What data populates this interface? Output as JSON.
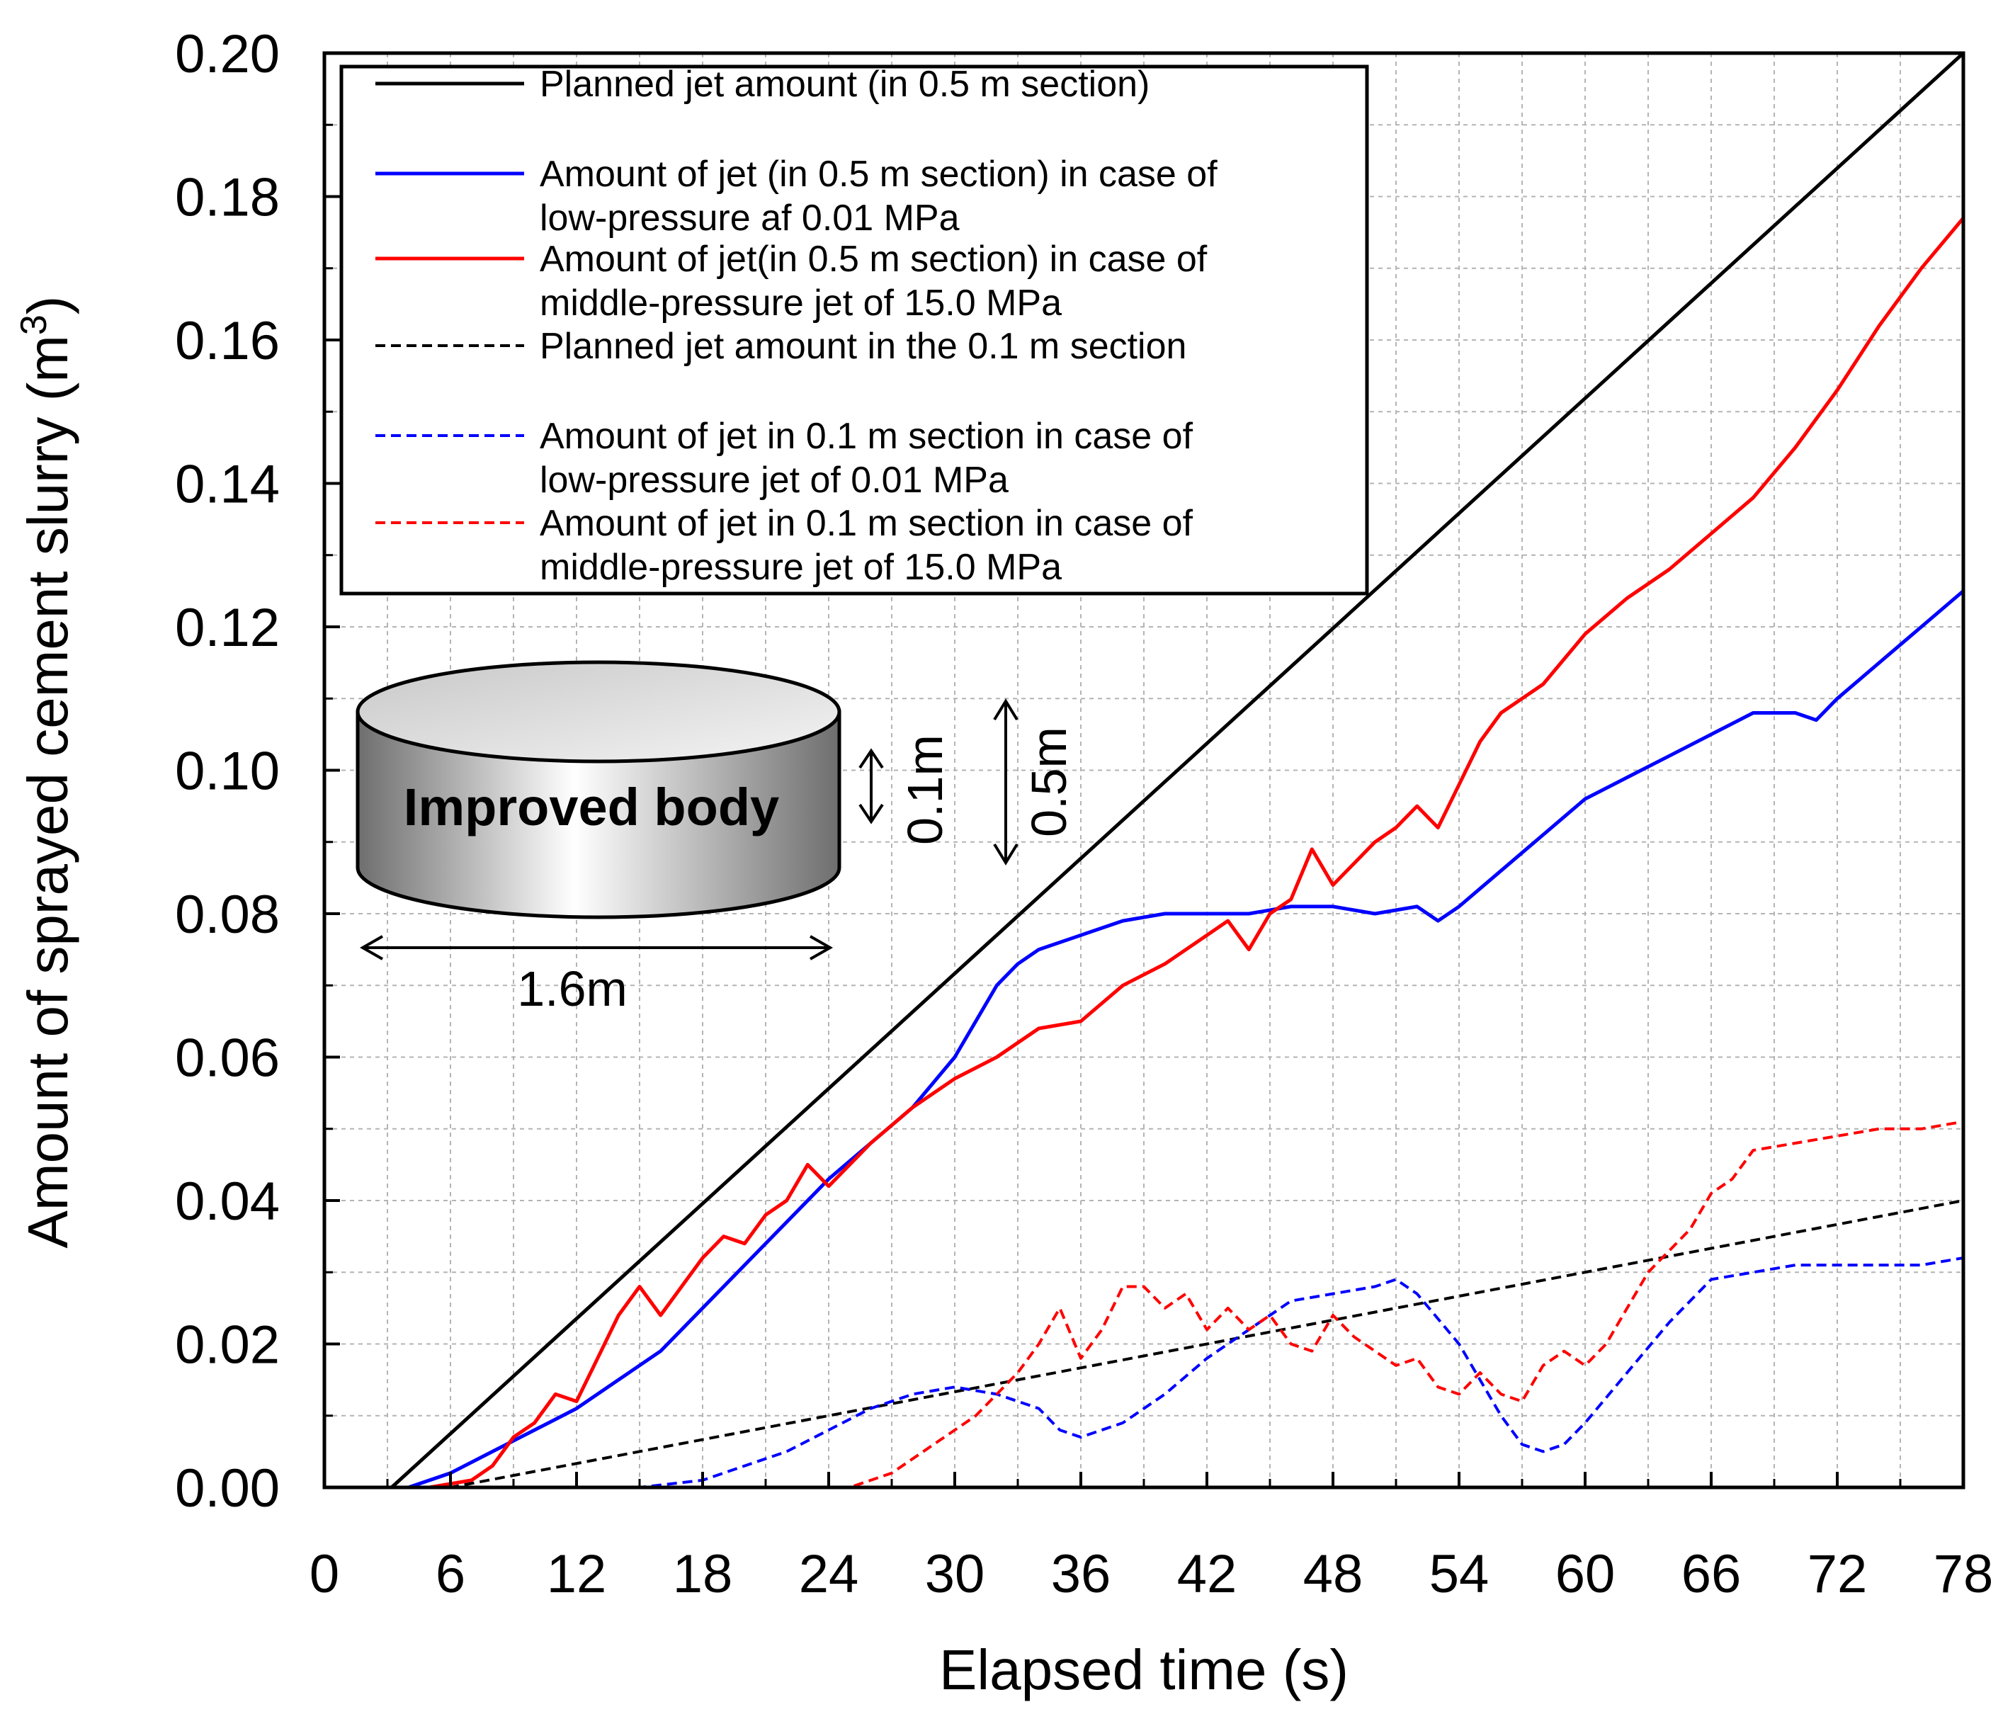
{
  "chart_data": {
    "type": "line",
    "xlabel": "Elapsed time (s)",
    "ylabel_main": "Amount of sprayed cement slurry (m",
    "ylabel_sup": "3",
    "ylabel_end": ")",
    "xlim": [
      0,
      78
    ],
    "ylim": [
      0,
      0.2
    ],
    "x_ticks": [
      "0",
      "6",
      "12",
      "18",
      "24",
      "30",
      "36",
      "42",
      "48",
      "54",
      "60",
      "66",
      "72",
      "78"
    ],
    "y_ticks": [
      "0.00",
      "0.02",
      "0.04",
      "0.06",
      "0.08",
      "0.10",
      "0.12",
      "0.14",
      "0.16",
      "0.18",
      "0.20"
    ],
    "grid": true,
    "legend_position": "top-left",
    "series": [
      {
        "name": "Planned jet amount (in 0.5 m section)",
        "legend_lines": [
          "Planned jet amount (in 0.5 m section)"
        ],
        "color": "#000000",
        "dash": "solid",
        "x": [
          0,
          3.2,
          78
        ],
        "y": [
          0,
          0,
          0.2
        ]
      },
      {
        "name": "Amount of jet (in 0.5 m section) in case of low-pressure af 0.01 MPa",
        "legend_lines": [
          "Amount of jet (in 0.5 m section) in case  of",
          "low-pressure af 0.01 MPa"
        ],
        "color": "#0000ff",
        "dash": "solid",
        "x": [
          0,
          4,
          6,
          8,
          10,
          12,
          14,
          16,
          18,
          20,
          22,
          24,
          26,
          28,
          30,
          31,
          32,
          33,
          34,
          36,
          38,
          40,
          42,
          44,
          46,
          48,
          50,
          52,
          53,
          54,
          56,
          58,
          60,
          62,
          64,
          66,
          68,
          70,
          71,
          72,
          74,
          76,
          78
        ],
        "y": [
          0,
          0,
          0.002,
          0.005,
          0.008,
          0.011,
          0.015,
          0.019,
          0.025,
          0.031,
          0.037,
          0.043,
          0.048,
          0.053,
          0.06,
          0.065,
          0.07,
          0.073,
          0.075,
          0.077,
          0.079,
          0.08,
          0.08,
          0.08,
          0.081,
          0.081,
          0.08,
          0.081,
          0.079,
          0.081,
          0.086,
          0.091,
          0.096,
          0.099,
          0.102,
          0.105,
          0.108,
          0.108,
          0.107,
          0.11,
          0.115,
          0.12,
          0.125
        ]
      },
      {
        "name": "Amount of jet(in 0.5 m section) in case of middle-pressure jet of 15.0 MPa",
        "legend_lines": [
          "Amount of jet(in 0.5 m section) in case of",
          "middle-pressure jet of 15.0 MPa"
        ],
        "color": "#ff0000",
        "dash": "solid",
        "x": [
          0,
          5,
          7,
          8,
          9,
          10,
          11,
          12,
          13,
          14,
          15,
          16,
          17,
          18,
          19,
          20,
          21,
          22,
          23,
          24,
          26,
          28,
          30,
          32,
          34,
          36,
          38,
          40,
          42,
          43,
          44,
          45,
          46,
          47,
          48,
          49,
          50,
          51,
          52,
          53,
          54,
          55,
          56,
          58,
          60,
          62,
          64,
          66,
          68,
          70,
          72,
          74,
          76,
          78
        ],
        "y": [
          0,
          0,
          0.001,
          0.003,
          0.007,
          0.009,
          0.013,
          0.012,
          0.018,
          0.024,
          0.028,
          0.024,
          0.028,
          0.032,
          0.035,
          0.034,
          0.038,
          0.04,
          0.045,
          0.042,
          0.048,
          0.053,
          0.057,
          0.06,
          0.064,
          0.065,
          0.07,
          0.073,
          0.077,
          0.079,
          0.075,
          0.08,
          0.082,
          0.089,
          0.084,
          0.087,
          0.09,
          0.092,
          0.095,
          0.092,
          0.098,
          0.104,
          0.108,
          0.112,
          0.119,
          0.124,
          0.128,
          0.133,
          0.138,
          0.145,
          0.153,
          0.162,
          0.17,
          0.177
        ]
      },
      {
        "name": "Planned jet amount in the 0.1 m section",
        "legend_lines": [
          "Planned jet amount in the 0.1 m section"
        ],
        "color": "#000000",
        "dash": "dashed",
        "x": [
          0,
          6,
          78
        ],
        "y": [
          0,
          0,
          0.04
        ]
      },
      {
        "name": "Amount of jet in 0.1 m section in case of low-pressure jet of 0.01 MPa",
        "legend_lines": [
          "Amount of jet in 0.1 m section in case of",
          "low-pressure jet of 0.01 MPa"
        ],
        "color": "#0000ff",
        "dash": "dashed",
        "x": [
          0,
          15,
          18,
          20,
          22,
          24,
          26,
          28,
          30,
          32,
          34,
          35,
          36,
          38,
          40,
          42,
          44,
          46,
          48,
          50,
          51,
          52,
          54,
          56,
          57,
          58,
          59,
          60,
          62,
          64,
          66,
          68,
          70,
          72,
          74,
          76,
          78
        ],
        "y": [
          0,
          0,
          0.001,
          0.003,
          0.005,
          0.008,
          0.011,
          0.013,
          0.014,
          0.013,
          0.011,
          0.008,
          0.007,
          0.009,
          0.013,
          0.018,
          0.022,
          0.026,
          0.027,
          0.028,
          0.029,
          0.027,
          0.02,
          0.01,
          0.006,
          0.005,
          0.006,
          0.009,
          0.016,
          0.023,
          0.029,
          0.03,
          0.031,
          0.031,
          0.031,
          0.031,
          0.032
        ]
      },
      {
        "name": "Amount of jet in 0.1 m section in case of middle-pressure jet of 15.0 MPa",
        "legend_lines": [
          "Amount of jet in 0.1 m section in case of",
          "middle-pressure jet of 15.0 MPa"
        ],
        "color": "#ff0000",
        "dash": "dashed",
        "x": [
          0,
          25,
          27,
          29,
          31,
          33,
          34,
          35,
          36,
          37,
          38,
          39,
          40,
          41,
          42,
          43,
          44,
          45,
          46,
          47,
          48,
          49,
          50,
          51,
          52,
          53,
          54,
          55,
          56,
          57,
          58,
          59,
          60,
          61,
          62,
          63,
          64,
          65,
          66,
          67,
          68,
          70,
          72,
          74,
          76,
          78
        ],
        "y": [
          0,
          0,
          0.002,
          0.006,
          0.01,
          0.016,
          0.02,
          0.025,
          0.018,
          0.022,
          0.028,
          0.028,
          0.025,
          0.027,
          0.022,
          0.025,
          0.022,
          0.024,
          0.02,
          0.019,
          0.024,
          0.021,
          0.019,
          0.017,
          0.018,
          0.014,
          0.013,
          0.016,
          0.013,
          0.012,
          0.017,
          0.019,
          0.017,
          0.02,
          0.025,
          0.03,
          0.033,
          0.036,
          0.041,
          0.043,
          0.047,
          0.048,
          0.049,
          0.05,
          0.05,
          0.051
        ]
      }
    ],
    "inset": {
      "body_label": "Improved body",
      "width_label": "1.6m",
      "small_height_label": "0.1m",
      "large_height_label": "0.5m"
    }
  }
}
